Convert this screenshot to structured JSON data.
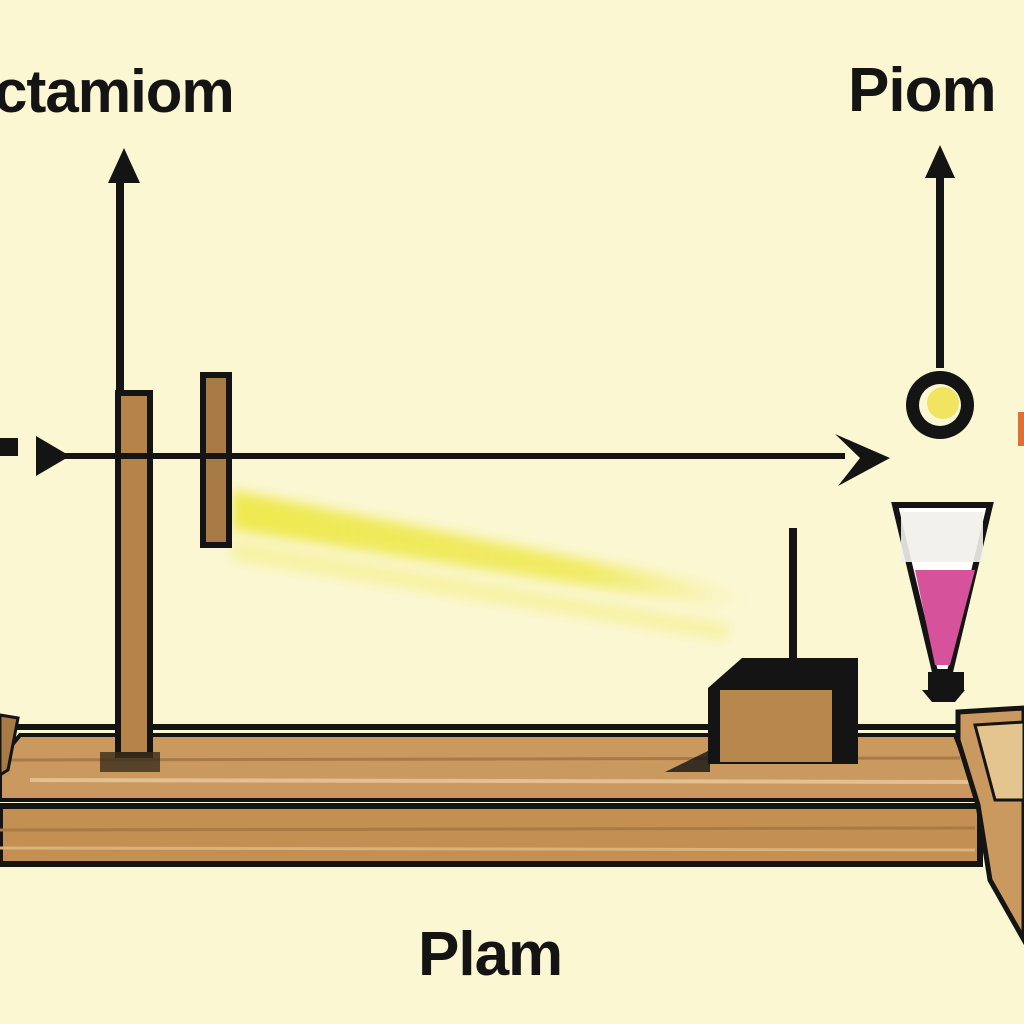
{
  "labels": {
    "top_left": "ctamiom",
    "top_right": "Piom",
    "bottom": "Plam"
  },
  "colors": {
    "background": "#fbf7d2",
    "ink": "#141414",
    "wood": "#c9995f",
    "wood_dark": "#a87a45",
    "light_beam": "#eee84a",
    "liquid": "#d6529a",
    "bulb": "#f0e460"
  },
  "icons": {
    "optical_bench": "wooden-bench",
    "light_ray": "arrow-right",
    "lamp": "pendant-lamp",
    "flask": "conical-glass"
  }
}
